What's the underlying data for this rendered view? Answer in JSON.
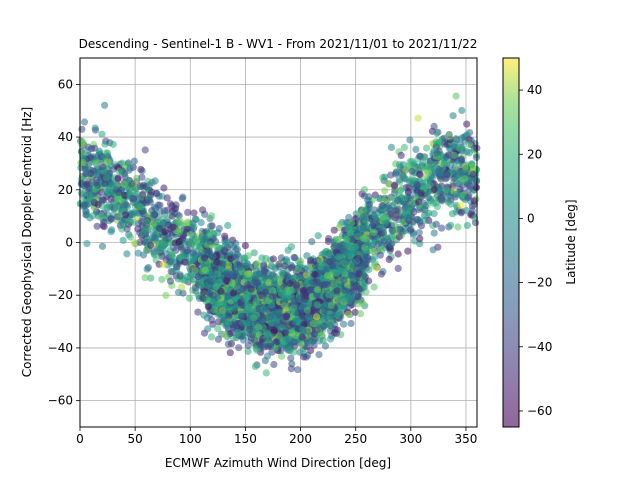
{
  "chart_data": {
    "type": "scatter",
    "title": "Descending - Sentinel-1 B - WV1 - From 2021/11/01 to 2021/11/22",
    "xlabel": "ECMWF Azimuth Wind Direction [deg]",
    "ylabel": "Corrected Geophysical Doppler Centroid [Hz]",
    "xlim": [
      0,
      360
    ],
    "ylim": [
      -70,
      70
    ],
    "x_ticks": [
      0,
      50,
      100,
      150,
      200,
      250,
      300,
      350
    ],
    "y_ticks": [
      -60,
      -40,
      -20,
      0,
      20,
      40,
      60
    ],
    "grid": true,
    "colorbar": {
      "label": "Latitude [deg]",
      "range": [
        -65,
        50
      ],
      "ticks": [
        -60,
        -40,
        -20,
        0,
        20,
        40
      ],
      "colormap": "viridis",
      "alpha": 0.55
    },
    "series": [
      {
        "approx_points": 5500,
        "trend": [
          {
            "x": 0,
            "y": 25,
            "spread": 12
          },
          {
            "x": 25,
            "y": 22,
            "spread": 12
          },
          {
            "x": 50,
            "y": 15,
            "spread": 11
          },
          {
            "x": 75,
            "y": 5,
            "spread": 11
          },
          {
            "x": 100,
            "y": -5,
            "spread": 10
          },
          {
            "x": 125,
            "y": -15,
            "spread": 10
          },
          {
            "x": 150,
            "y": -22,
            "spread": 10
          },
          {
            "x": 175,
            "y": -26,
            "spread": 10
          },
          {
            "x": 200,
            "y": -25,
            "spread": 10
          },
          {
            "x": 225,
            "y": -18,
            "spread": 10
          },
          {
            "x": 250,
            "y": -6,
            "spread": 11
          },
          {
            "x": 275,
            "y": 8,
            "spread": 11
          },
          {
            "x": 300,
            "y": 18,
            "spread": 12
          },
          {
            "x": 325,
            "y": 25,
            "spread": 12
          },
          {
            "x": 350,
            "y": 28,
            "spread": 12
          },
          {
            "x": 360,
            "y": 26,
            "spread": 12
          }
        ]
      }
    ]
  }
}
